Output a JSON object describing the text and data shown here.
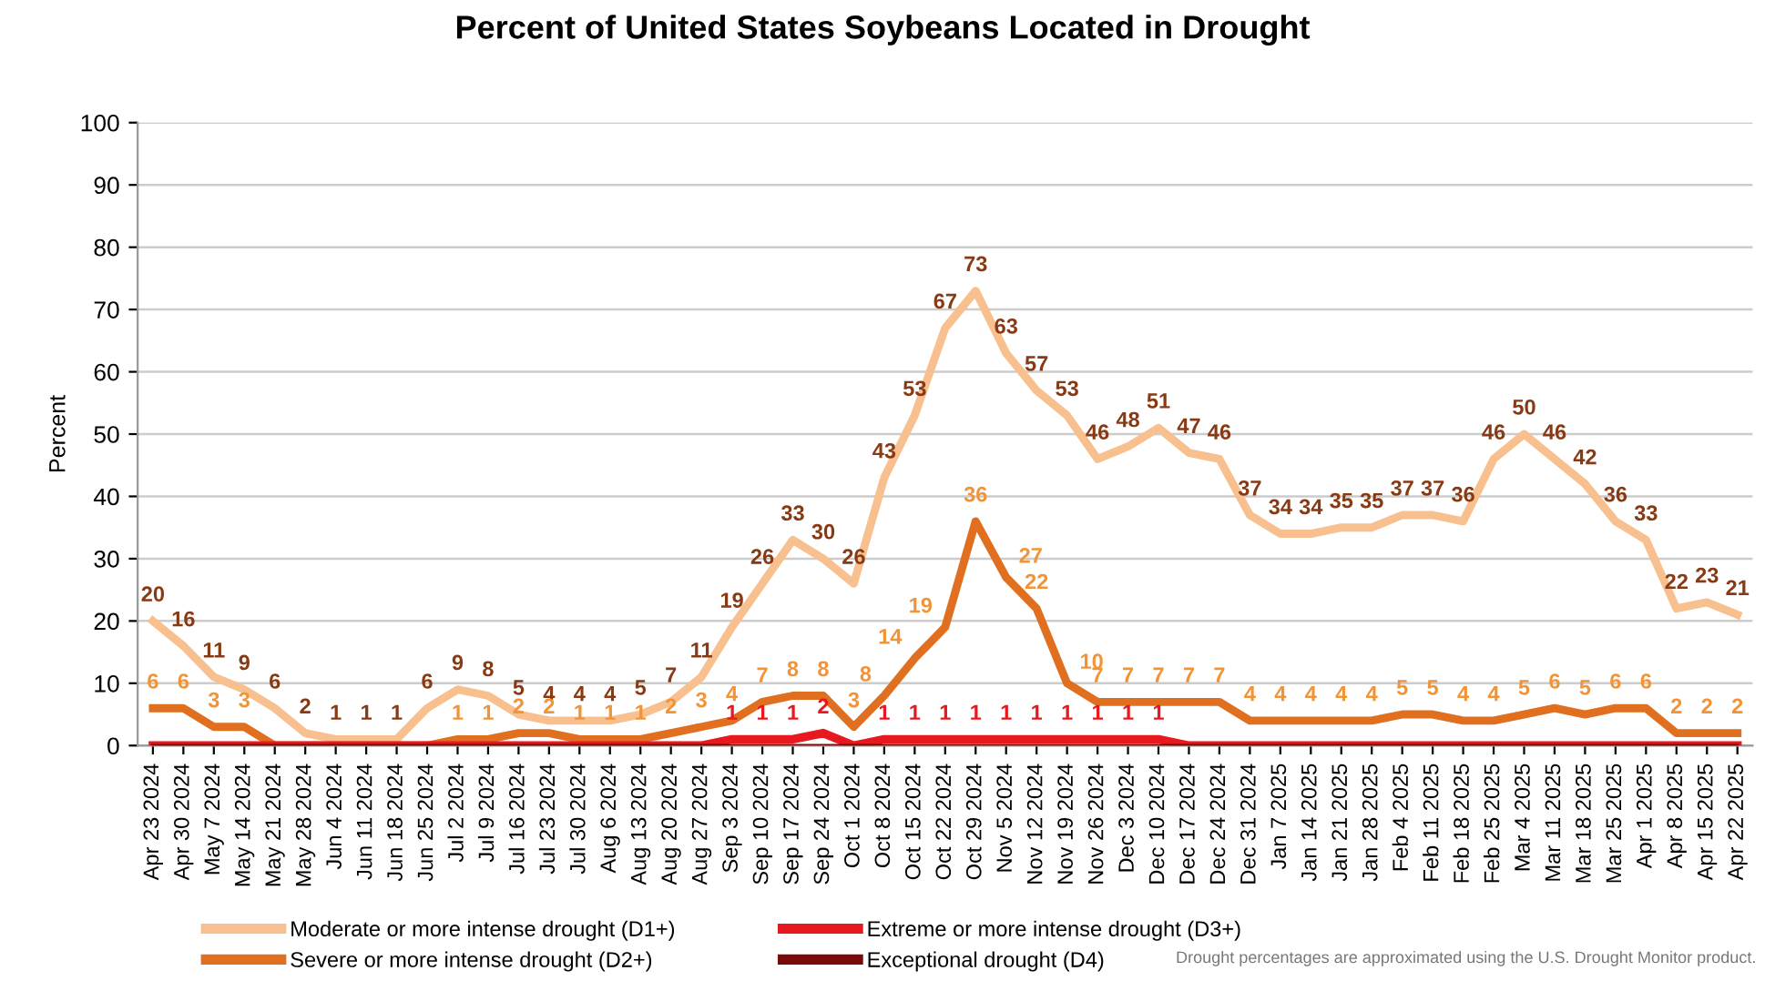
{
  "chart_data": {
    "type": "line",
    "title": "Percent of United States Soybeans Located in Drought",
    "ylabel": "Percent",
    "categories": [
      "Apr 23 2024",
      "Apr 30 2024",
      "May 7 2024",
      "May 14 2024",
      "May 21 2024",
      "May 28 2024",
      "Jun 4 2024",
      "Jun 11 2024",
      "Jun 18 2024",
      "Jun 25 2024",
      "Jul 2 2024",
      "Jul 9 2024",
      "Jul 16 2024",
      "Jul 23 2024",
      "Jul 30 2024",
      "Aug 6 2024",
      "Aug 13 2024",
      "Aug 20 2024",
      "Aug 27 2024",
      "Sep 3 2024",
      "Sep 10 2024",
      "Sep 17 2024",
      "Sep 24 2024",
      "Oct 1 2024",
      "Oct 8 2024",
      "Oct 15 2024",
      "Oct 22 2024",
      "Oct 29 2024",
      "Nov 5 2024",
      "Nov 12 2024",
      "Nov 19 2024",
      "Nov 26 2024",
      "Dec 3 2024",
      "Dec 10 2024",
      "Dec 17 2024",
      "Dec 24 2024",
      "Dec 31 2024",
      "Jan 7 2025",
      "Jan 14 2025",
      "Jan 21 2025",
      "Jan 28 2025",
      "Feb 4 2025",
      "Feb 11 2025",
      "Feb 18 2025",
      "Feb 25 2025",
      "Mar 4 2025",
      "Mar 11 2025",
      "Mar 18 2025",
      "Mar 25 2025",
      "Apr 1 2025",
      "Apr 8 2025",
      "Apr 15 2025",
      "Apr 22 2025"
    ],
    "series": [
      {
        "name": "Moderate or more intense drought (D1+)",
        "color": "#f8c08f",
        "values": [
          20,
          16,
          11,
          9,
          6,
          2,
          1,
          1,
          1,
          6,
          9,
          8,
          5,
          4,
          4,
          4,
          5,
          7,
          11,
          19,
          26,
          33,
          30,
          26,
          43,
          53,
          67,
          73,
          63,
          57,
          53,
          46,
          48,
          51,
          47,
          46,
          37,
          34,
          34,
          35,
          35,
          37,
          37,
          36,
          46,
          50,
          46,
          42,
          36,
          33,
          22,
          23,
          21
        ],
        "value_labels": [
          "20",
          "16",
          "11",
          "9",
          "6",
          "2",
          "1",
          "1",
          "1",
          "6",
          "9",
          "8",
          "5",
          "4",
          "4",
          "4",
          "5",
          "7",
          "11",
          "19",
          "26",
          "33",
          "30",
          "26",
          "43",
          "53",
          "67",
          "73",
          "63",
          "57",
          "53",
          "46",
          "48",
          "51",
          "47",
          "46",
          "37",
          "34",
          "34",
          "35",
          "35",
          "37",
          "37",
          "36",
          "46",
          "50",
          "46",
          "42",
          "36",
          "33",
          "22",
          "23",
          "21"
        ]
      },
      {
        "name": "Severe or more intense drought (D2+)",
        "color": "#e07020",
        "values": [
          6,
          6,
          3,
          3,
          0,
          0,
          0,
          0,
          0,
          0,
          1,
          1,
          2,
          2,
          1,
          1,
          1,
          2,
          3,
          4,
          7,
          8,
          8,
          3,
          8,
          14,
          19,
          36,
          27,
          22,
          10,
          7,
          7,
          7,
          7,
          7,
          4,
          4,
          4,
          4,
          4,
          5,
          5,
          4,
          4,
          5,
          6,
          5,
          6,
          6,
          2,
          2,
          2
        ],
        "value_labels": [
          "6",
          "6",
          "3",
          "3",
          null,
          null,
          null,
          null,
          null,
          null,
          "1",
          "1",
          "2",
          "2",
          "1",
          "1",
          "1",
          "2",
          "3",
          "4",
          "7",
          "8",
          "8",
          "3",
          "8",
          "14",
          "19",
          "36",
          "27",
          "22",
          "10",
          "7",
          "7",
          "7",
          "7",
          "7",
          "4",
          "4",
          "4",
          "4",
          "4",
          "5",
          "5",
          "4",
          "4",
          "5",
          "6",
          "5",
          "6",
          "6",
          "2",
          "2",
          "2"
        ]
      },
      {
        "name": "Extreme or more intense drought (D3+)",
        "color": "#e8191e",
        "values": [
          0,
          0,
          0,
          0,
          0,
          0,
          0,
          0,
          0,
          0,
          0,
          0,
          0,
          0,
          0,
          0,
          0,
          0,
          0,
          1,
          1,
          1,
          2,
          0,
          1,
          1,
          1,
          1,
          1,
          1,
          1,
          1,
          1,
          1,
          0,
          0,
          0,
          0,
          0,
          0,
          0,
          0,
          0,
          0,
          0,
          0,
          0,
          0,
          0,
          0,
          0,
          0,
          0
        ],
        "value_labels": [
          null,
          null,
          null,
          null,
          null,
          null,
          null,
          null,
          null,
          null,
          null,
          null,
          null,
          null,
          null,
          null,
          null,
          null,
          null,
          "1",
          "1",
          "1",
          "2",
          null,
          "1",
          "1",
          "1",
          "1",
          "1",
          "1",
          "1",
          "1",
          "1",
          "1",
          null,
          null,
          null,
          null,
          null,
          null,
          null,
          null,
          null,
          null,
          null,
          null,
          null,
          null,
          null,
          null,
          null,
          null,
          null
        ]
      },
      {
        "name": "Exceptional drought (D4)",
        "color": "#7a0a0a",
        "values": [
          0,
          0,
          0,
          0,
          0,
          0,
          0,
          0,
          0,
          0,
          0,
          0,
          0,
          0,
          0,
          0,
          0,
          0,
          0,
          0,
          0,
          0,
          0,
          0,
          0,
          0,
          0,
          0,
          0,
          0,
          0,
          0,
          0,
          0,
          0,
          0,
          0,
          0,
          0,
          0,
          0,
          0,
          0,
          0,
          0,
          0,
          0,
          0,
          0,
          0,
          0,
          0,
          0
        ]
      }
    ],
    "ylim": [
      0,
      100
    ],
    "yticks": [
      0,
      10,
      20,
      30,
      40,
      50,
      60,
      70,
      80,
      90,
      100
    ],
    "grid": "y",
    "legend": "bottom",
    "marker": "none",
    "line_style": "solid",
    "annotations": [
      "Drought percentages are approximated using the U.S. Drought Monitor product."
    ]
  }
}
